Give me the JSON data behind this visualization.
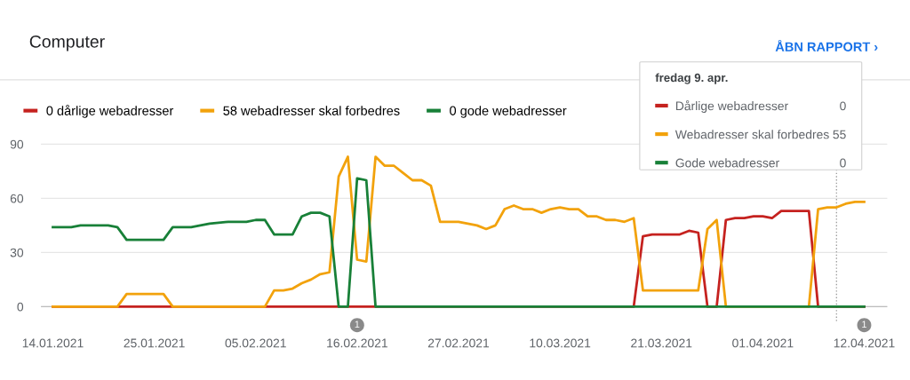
{
  "chart_data": {
    "type": "line",
    "title": "Computer",
    "xlim": [
      "2021-01-12T17:00",
      "2021-04-14T12:00"
    ],
    "xticks": [
      {
        "value": "2021-01-14",
        "label": "14.01.2021"
      },
      {
        "value": "2021-01-25",
        "label": "25.01.2021"
      },
      {
        "value": "2021-02-05",
        "label": "05.02.2021"
      },
      {
        "value": "2021-02-16",
        "label": "16.02.2021"
      },
      {
        "value": "2021-02-27",
        "label": "27.02.2021"
      },
      {
        "value": "2021-03-10",
        "label": "10.03.2021"
      },
      {
        "value": "2021-03-21",
        "label": "21.03.2021"
      },
      {
        "value": "2021-04-01",
        "label": "01.04.2021"
      },
      {
        "value": "2021-04-12",
        "label": "12.04.2021"
      }
    ],
    "ylim": [
      -8,
      93
    ],
    "yticks": [
      0,
      30,
      60,
      90
    ],
    "grid": "y",
    "legend": "top left",
    "marker": "none",
    "line_style": "solid",
    "series": [
      {
        "name": "0 dårlige webadresser",
        "color": "#c5221f",
        "x": [
          "2021-01-14",
          "2021-03-18",
          "2021-03-19",
          "2021-03-20",
          "2021-03-23",
          "2021-03-24",
          "2021-03-25",
          "2021-03-26",
          "2021-03-27",
          "2021-03-28",
          "2021-03-29",
          "2021-03-30",
          "2021-03-31",
          "2021-04-01",
          "2021-04-02",
          "2021-04-03",
          "2021-04-06",
          "2021-04-07",
          "2021-04-12"
        ],
        "values": [
          0,
          0,
          39,
          40,
          40,
          42,
          41,
          0,
          0,
          48,
          49,
          49,
          50,
          50,
          49,
          53,
          53,
          0,
          0
        ]
      },
      {
        "name": "58 webadresser skal forbedres",
        "color": "#f2a20c",
        "x": [
          "2021-01-14",
          "2021-01-21",
          "2021-01-22",
          "2021-01-26",
          "2021-01-27",
          "2021-02-06",
          "2021-02-07",
          "2021-02-08",
          "2021-02-09",
          "2021-02-10",
          "2021-02-11",
          "2021-02-12",
          "2021-02-13",
          "2021-02-14",
          "2021-02-15",
          "2021-02-16",
          "2021-02-17",
          "2021-02-18",
          "2021-02-19",
          "2021-02-20",
          "2021-02-21",
          "2021-02-22",
          "2021-02-23",
          "2021-02-24",
          "2021-02-25",
          "2021-02-26",
          "2021-02-27",
          "2021-03-01",
          "2021-03-02",
          "2021-03-03",
          "2021-03-04",
          "2021-03-05",
          "2021-03-06",
          "2021-03-07",
          "2021-03-08",
          "2021-03-09",
          "2021-03-10",
          "2021-03-11",
          "2021-03-12",
          "2021-03-13",
          "2021-03-14",
          "2021-03-15",
          "2021-03-16",
          "2021-03-17",
          "2021-03-18",
          "2021-03-19",
          "2021-03-25",
          "2021-03-26",
          "2021-03-27",
          "2021-03-28",
          "2021-04-06",
          "2021-04-07",
          "2021-04-08",
          "2021-04-09",
          "2021-04-10",
          "2021-04-11",
          "2021-04-12"
        ],
        "values": [
          0,
          0,
          7,
          7,
          0,
          0,
          9,
          9,
          10,
          13,
          15,
          18,
          19,
          72,
          83,
          26,
          25,
          83,
          78,
          78,
          74,
          70,
          70,
          67,
          47,
          47,
          47,
          45,
          43,
          45,
          54,
          56,
          54,
          54,
          52,
          54,
          55,
          54,
          54,
          50,
          50,
          48,
          48,
          47,
          49,
          9,
          9,
          43,
          48,
          0,
          0,
          54,
          55,
          55,
          57,
          58,
          58
        ]
      },
      {
        "name": "0 gode webadresser",
        "color": "#188038",
        "x": [
          "2021-01-14",
          "2021-01-16",
          "2021-01-17",
          "2021-01-20",
          "2021-01-21",
          "2021-01-22",
          "2021-01-26",
          "2021-01-27",
          "2021-01-29",
          "2021-01-31",
          "2021-02-02",
          "2021-02-04",
          "2021-02-05",
          "2021-02-06",
          "2021-02-07",
          "2021-02-09",
          "2021-02-10",
          "2021-02-11",
          "2021-02-12",
          "2021-02-13",
          "2021-02-14",
          "2021-02-15",
          "2021-02-16",
          "2021-02-17",
          "2021-02-18",
          "2021-04-12"
        ],
        "values": [
          44,
          44,
          45,
          45,
          44,
          37,
          37,
          44,
          44,
          46,
          47,
          47,
          48,
          48,
          40,
          40,
          50,
          52,
          52,
          50,
          0,
          0,
          71,
          70,
          0,
          0
        ]
      }
    ],
    "ref_lines": [
      {
        "axis": "x",
        "value": "2021-04-09",
        "color": "#9e9e9e",
        "line_style": "dotted"
      }
    ],
    "annotations": [
      "ÅBN RAPPORT ›",
      "fredag 9. apr.",
      "Dårlige webadresser",
      "0",
      "Webadresser skal forbedres",
      "55",
      "Gode webadresser",
      "0",
      {
        "text": "1",
        "x": "2021-02-16"
      },
      {
        "text": "1",
        "x": "2021-04-12"
      }
    ]
  }
}
